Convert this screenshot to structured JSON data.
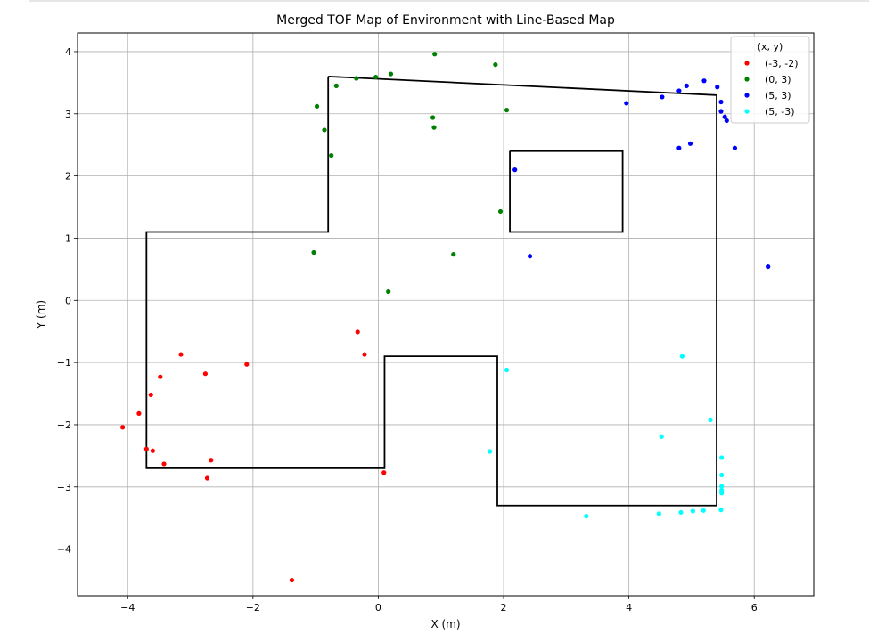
{
  "chart_data": {
    "type": "scatter",
    "title": "Merged TOF Map of Environment with Line-Based Map",
    "xlabel": "X (m)",
    "ylabel": "Y (m)",
    "xlim": [
      -4.8,
      6.95
    ],
    "ylim": [
      -4.75,
      4.3
    ],
    "xticks": [
      -4,
      -2,
      0,
      2,
      4,
      6
    ],
    "xtick_labels": [
      "−4",
      "−2",
      "0",
      "2",
      "4",
      "6"
    ],
    "yticks": [
      -4,
      -3,
      -2,
      -1,
      0,
      1,
      2,
      3,
      4
    ],
    "ytick_labels": [
      "−4",
      "−3",
      "−2",
      "−1",
      "0",
      "1",
      "2",
      "3",
      "4"
    ],
    "grid": true,
    "legend": {
      "title": "(x, y)",
      "placement": "top-right"
    },
    "series": [
      {
        "name": "(-3, -2)",
        "color": "#ff0000",
        "points": [
          [
            -4.08,
            -2.04
          ],
          [
            -3.82,
            -1.82
          ],
          [
            -3.63,
            -1.52
          ],
          [
            -3.48,
            -1.23
          ],
          [
            -3.15,
            -0.87
          ],
          [
            -2.76,
            -1.18
          ],
          [
            -2.1,
            -1.03
          ],
          [
            -3.7,
            -2.39
          ],
          [
            -3.6,
            -2.42
          ],
          [
            -3.42,
            -2.63
          ],
          [
            -2.67,
            -2.57
          ],
          [
            -2.73,
            -2.86
          ],
          [
            -1.38,
            -4.5
          ],
          [
            -0.33,
            -0.51
          ],
          [
            -0.22,
            -0.87
          ],
          [
            0.09,
            -2.77
          ]
        ]
      },
      {
        "name": "(0, 3)",
        "color": "#008000",
        "points": [
          [
            0.9,
            3.96
          ],
          [
            1.87,
            3.79
          ],
          [
            0.2,
            3.64
          ],
          [
            -0.04,
            3.59
          ],
          [
            -0.35,
            3.57
          ],
          [
            -0.67,
            3.45
          ],
          [
            -0.98,
            3.12
          ],
          [
            -0.86,
            2.74
          ],
          [
            -0.75,
            2.33
          ],
          [
            0.87,
            2.94
          ],
          [
            0.89,
            2.78
          ],
          [
            2.05,
            3.06
          ],
          [
            1.95,
            1.43
          ],
          [
            1.2,
            0.74
          ],
          [
            -1.03,
            0.77
          ],
          [
            0.16,
            0.14
          ]
        ]
      },
      {
        "name": "(5, 3)",
        "color": "#0000ff",
        "points": [
          [
            5.2,
            3.53
          ],
          [
            5.41,
            3.43
          ],
          [
            4.92,
            3.45
          ],
          [
            4.8,
            3.37
          ],
          [
            4.53,
            3.27
          ],
          [
            3.96,
            3.17
          ],
          [
            5.47,
            3.19
          ],
          [
            5.47,
            3.04
          ],
          [
            5.53,
            2.95
          ],
          [
            5.56,
            2.89
          ],
          [
            4.98,
            2.52
          ],
          [
            4.8,
            2.45
          ],
          [
            5.69,
            2.45
          ],
          [
            2.18,
            2.1
          ],
          [
            2.42,
            0.71
          ],
          [
            6.22,
            0.54
          ]
        ]
      },
      {
        "name": "(5, -3)",
        "color": "#00ffff",
        "points": [
          [
            4.85,
            -0.9
          ],
          [
            2.05,
            -1.12
          ],
          [
            5.3,
            -1.92
          ],
          [
            4.52,
            -2.19
          ],
          [
            1.78,
            -2.43
          ],
          [
            5.48,
            -2.53
          ],
          [
            5.48,
            -2.81
          ],
          [
            5.48,
            -2.99
          ],
          [
            5.48,
            -3.05
          ],
          [
            5.48,
            -3.1
          ],
          [
            5.47,
            -3.37
          ],
          [
            5.19,
            -3.38
          ],
          [
            5.02,
            -3.39
          ],
          [
            4.83,
            -3.41
          ],
          [
            4.48,
            -3.43
          ],
          [
            3.32,
            -3.47
          ]
        ]
      }
    ],
    "line_map": [
      [
        [
          -0.8,
          3.6
        ],
        [
          5.4,
          3.3
        ],
        [
          5.4,
          -3.3
        ],
        [
          1.9,
          -3.3
        ],
        [
          1.9,
          -0.9
        ],
        [
          0.1,
          -0.9
        ],
        [
          0.1,
          -2.7
        ],
        [
          -3.7,
          -2.7
        ],
        [
          -3.7,
          1.1
        ],
        [
          -0.8,
          1.1
        ],
        [
          -0.8,
          3.6
        ]
      ],
      [
        [
          2.1,
          2.4
        ],
        [
          3.9,
          2.4
        ],
        [
          3.9,
          1.1
        ],
        [
          2.1,
          1.1
        ],
        [
          2.1,
          2.4
        ]
      ]
    ]
  }
}
